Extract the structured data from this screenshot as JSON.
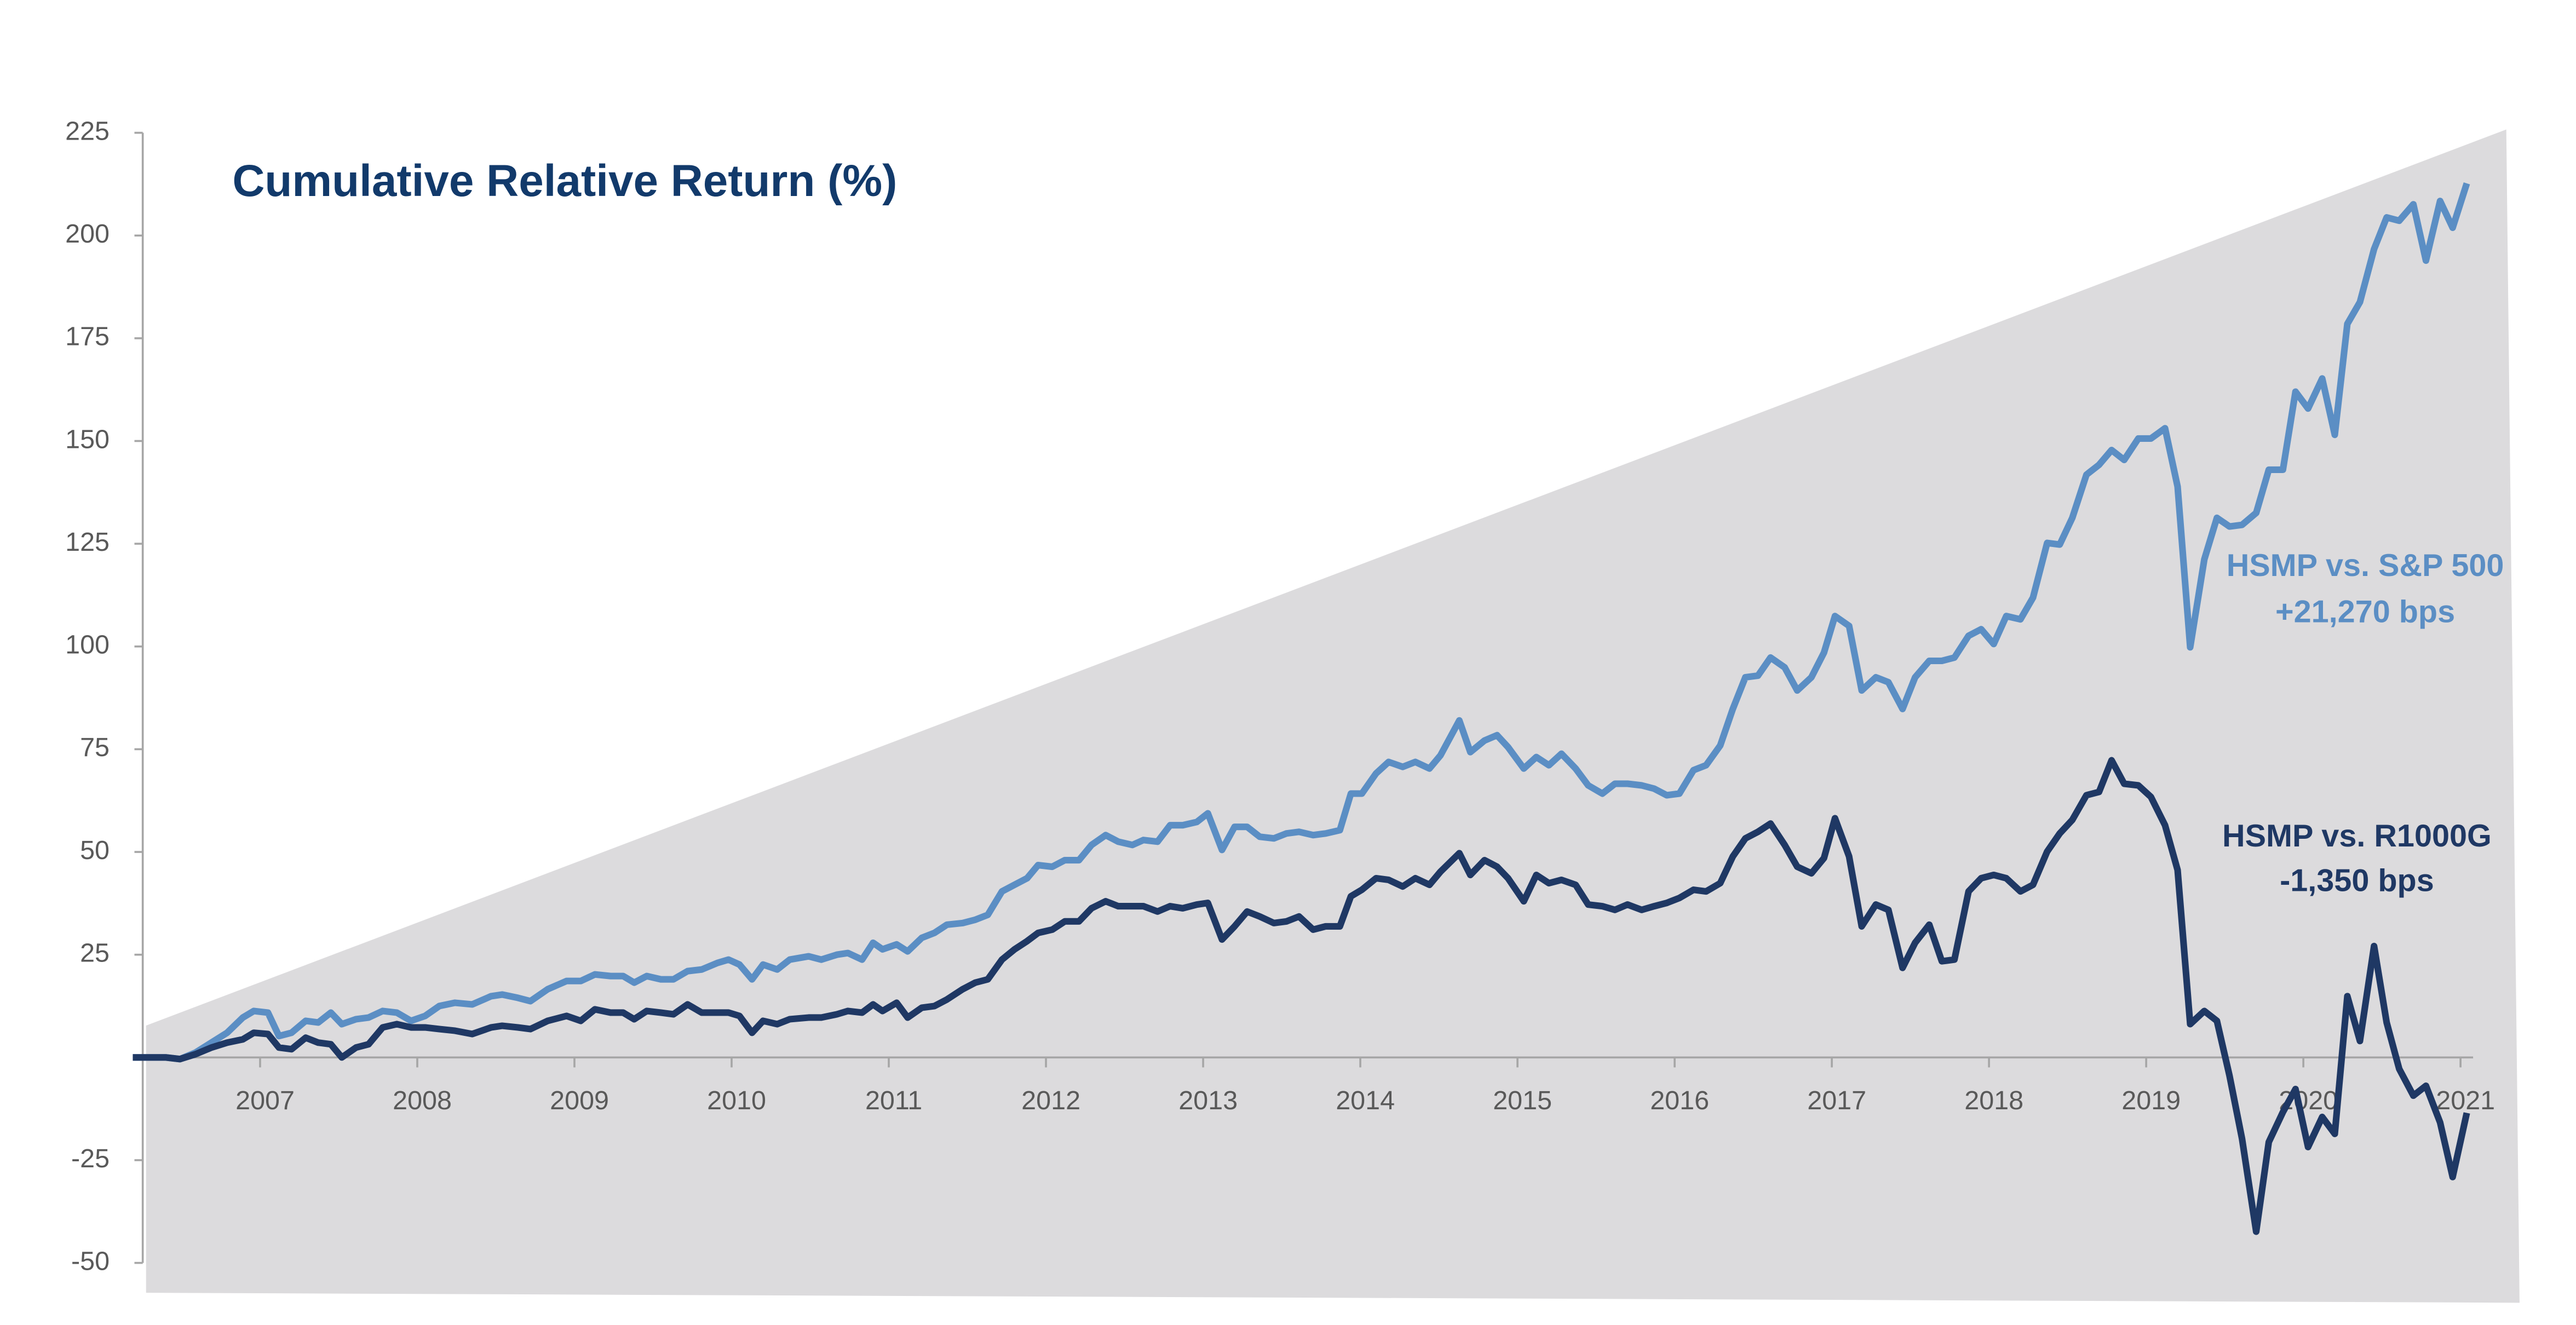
{
  "chart_data": {
    "type": "line",
    "title": "Cumulative Relative Return (%)",
    "x": [
      2006.19,
      2006.4,
      2006.49,
      2006.59,
      2006.69,
      2006.79,
      2006.89,
      2006.96,
      2007.05,
      2007.12,
      2007.2,
      2007.29,
      2007.37,
      2007.45,
      2007.52,
      2007.61,
      2007.69,
      2007.78,
      2007.87,
      2007.96,
      2008.05,
      2008.14,
      2008.24,
      2008.35,
      2008.47,
      2008.54,
      2008.64,
      2008.72,
      2008.83,
      2008.95,
      2009.04,
      2009.13,
      2009.23,
      2009.31,
      2009.38,
      2009.46,
      2009.55,
      2009.63,
      2009.72,
      2009.81,
      2009.91,
      2009.98,
      2010.05,
      2010.13,
      2010.2,
      2010.29,
      2010.37,
      2010.49,
      2010.57,
      2010.67,
      2010.74,
      2010.83,
      2010.9,
      2010.96,
      2011.05,
      2011.12,
      2011.21,
      2011.29,
      2011.37,
      2011.47,
      2011.55,
      2011.63,
      2011.72,
      2011.8,
      2011.88,
      2011.95,
      2012.04,
      2012.12,
      2012.21,
      2012.29,
      2012.38,
      2012.46,
      2012.55,
      2012.62,
      2012.71,
      2012.79,
      2012.87,
      2012.96,
      2013.03,
      2013.12,
      2013.2,
      2013.28,
      2013.36,
      2013.45,
      2013.53,
      2013.61,
      2013.7,
      2013.78,
      2013.87,
      2013.94,
      2014.01,
      2014.1,
      2014.18,
      2014.27,
      2014.35,
      2014.44,
      2014.51,
      2014.63,
      2014.7,
      2014.79,
      2014.87,
      2014.94,
      2015.04,
      2015.12,
      2015.2,
      2015.28,
      2015.37,
      2015.45,
      2015.54,
      2015.62,
      2015.7,
      2015.79,
      2015.87,
      2015.95,
      2016.03,
      2016.12,
      2016.2,
      2016.29,
      2016.37,
      2016.45,
      2016.53,
      2016.61,
      2016.7,
      2016.78,
      2016.87,
      2016.95,
      2017.02,
      2017.11,
      2017.19,
      2017.28,
      2017.36,
      2017.45,
      2017.53,
      2017.62,
      2017.7,
      2017.78,
      2017.87,
      2017.95,
      2018.03,
      2018.11,
      2018.2,
      2018.28,
      2018.37,
      2018.45,
      2018.53,
      2018.62,
      2018.7,
      2018.78,
      2018.86,
      2018.95,
      2019.03,
      2019.12,
      2019.2,
      2019.28,
      2019.37,
      2019.45,
      2019.53,
      2019.61,
      2019.7,
      2019.78,
      2019.87,
      2019.95,
      2020.03,
      2020.12,
      2020.2,
      2020.28,
      2020.36,
      2020.45,
      2020.53,
      2020.61,
      2020.7,
      2020.78,
      2020.87,
      2020.95,
      2021.04
    ],
    "series": [
      {
        "name": "HSMP vs. S&P 500",
        "annotation": "+21,270 bps",
        "color": "#5b8ec4",
        "values": [
          0,
          0,
          -0.4,
          1.2,
          3.6,
          6,
          9.7,
          11.3,
          10.9,
          5.2,
          6,
          8.9,
          8.5,
          10.9,
          8.1,
          9.3,
          9.7,
          11.3,
          10.9,
          8.9,
          10.1,
          12.5,
          13.3,
          12.9,
          14.9,
          15.3,
          14.5,
          13.7,
          16.6,
          18.6,
          18.6,
          20.2,
          19.8,
          19.8,
          18.2,
          19.8,
          19,
          19,
          21,
          21.4,
          23,
          23.8,
          22.6,
          19,
          22.6,
          21.4,
          23.8,
          24.6,
          23.8,
          25,
          25.4,
          23.8,
          27.9,
          26.3,
          27.5,
          25.8,
          29.1,
          30.3,
          32.3,
          32.7,
          33.5,
          34.7,
          40.4,
          42,
          43.6,
          46.8,
          46.4,
          48,
          48,
          51.7,
          54.1,
          52.5,
          51.7,
          52.9,
          52.5,
          56.5,
          56.5,
          57.3,
          59.4,
          50.5,
          56.1,
          56.1,
          53.7,
          53.3,
          54.5,
          54.9,
          54.1,
          54.5,
          55.3,
          64.2,
          64.2,
          69.1,
          71.9,
          70.7,
          71.9,
          70.3,
          73.5,
          82,
          74.3,
          77.1,
          78.4,
          75.5,
          70.3,
          73.1,
          71.1,
          73.9,
          70.3,
          66.2,
          64.2,
          66.6,
          66.6,
          66.2,
          65.4,
          63.8,
          64.2,
          69.9,
          71.1,
          75.9,
          84.8,
          92.5,
          92.9,
          97.3,
          94.9,
          89.3,
          92.5,
          98.5,
          107.4,
          105,
          89.3,
          92.5,
          91.3,
          84.8,
          92.5,
          96.5,
          96.5,
          97.3,
          102.6,
          104.2,
          100.6,
          107.4,
          106.6,
          111.9,
          125.2,
          124.8,
          131.3,
          141.8,
          144.2,
          147.8,
          145.4,
          150.6,
          150.6,
          153.1,
          138.9,
          99.8,
          121.2,
          131.3,
          129.2,
          129.6,
          132.5,
          143,
          143,
          162,
          157.9,
          165.2,
          151.5,
          178.5,
          183.8,
          196.7,
          204.4,
          203.6,
          207.6,
          193.9,
          208.4,
          201.9,
          212.7
        ]
      },
      {
        "name": "HSMP vs. R1000G",
        "annotation": "-1,350 bps",
        "color": "#1f3864",
        "values": [
          0,
          0,
          -0.4,
          0.8,
          2.4,
          3.6,
          4.4,
          6,
          5.7,
          2.4,
          2,
          4.8,
          3.6,
          3.2,
          0,
          2.4,
          3.2,
          7.3,
          8.1,
          7.3,
          7.3,
          6.9,
          6.5,
          5.7,
          7.3,
          7.7,
          7.3,
          6.9,
          8.9,
          10.1,
          8.9,
          11.7,
          10.9,
          10.9,
          9.3,
          11.3,
          10.9,
          10.5,
          12.9,
          10.9,
          10.9,
          10.9,
          10.1,
          6,
          8.9,
          8.1,
          9.3,
          9.7,
          9.7,
          10.5,
          11.3,
          10.9,
          12.9,
          11.3,
          13.3,
          9.7,
          12.1,
          12.5,
          14.1,
          16.6,
          18.2,
          19,
          23.8,
          26.3,
          28.3,
          30.3,
          31.1,
          33.1,
          33.1,
          36.3,
          38,
          36.8,
          36.8,
          36.8,
          35.5,
          36.8,
          36.3,
          37.2,
          37.6,
          28.7,
          31.9,
          35.5,
          34.3,
          32.7,
          33.1,
          34.3,
          31.1,
          31.9,
          31.9,
          39.2,
          40.8,
          43.6,
          43.2,
          41.6,
          43.6,
          42,
          45.2,
          49.7,
          44.4,
          48,
          46.4,
          43.6,
          38,
          44.4,
          42.4,
          43.2,
          42,
          37.2,
          36.8,
          35.9,
          37.2,
          35.9,
          36.8,
          37.6,
          38.8,
          40.8,
          40.4,
          42.4,
          48.9,
          53.3,
          54.9,
          56.9,
          51.7,
          46.4,
          44.8,
          48.5,
          58.2,
          48.9,
          31.9,
          37.2,
          35.9,
          21.8,
          27.9,
          32.3,
          23.4,
          23.8,
          40.4,
          43.6,
          44.4,
          43.6,
          40.4,
          42,
          50.1,
          54.5,
          57.8,
          63.8,
          64.6,
          72.3,
          66.6,
          66.2,
          63.4,
          56.5,
          45.6,
          8.1,
          11.3,
          8.9,
          -4.4,
          -19.8,
          -42.4,
          -20.6,
          -13.3,
          -7.7,
          -21.8,
          -14.5,
          -18.6,
          14.9,
          4,
          27.1,
          8.5,
          -2.8,
          -9.3,
          -6.9,
          -15.8,
          -29.1,
          -13.5
        ]
      }
    ],
    "xlim": [
      2006.19,
      2021.08
    ],
    "xticks": [
      2007,
      2008,
      2009,
      2010,
      2011,
      2012,
      2013,
      2014,
      2015,
      2016,
      2017,
      2018,
      2019,
      2020,
      2021
    ],
    "ylim": [
      -50,
      225
    ],
    "yticks": [
      -50,
      -25,
      25,
      50,
      75,
      100,
      125,
      150,
      175,
      200,
      225
    ],
    "grid": false
  }
}
